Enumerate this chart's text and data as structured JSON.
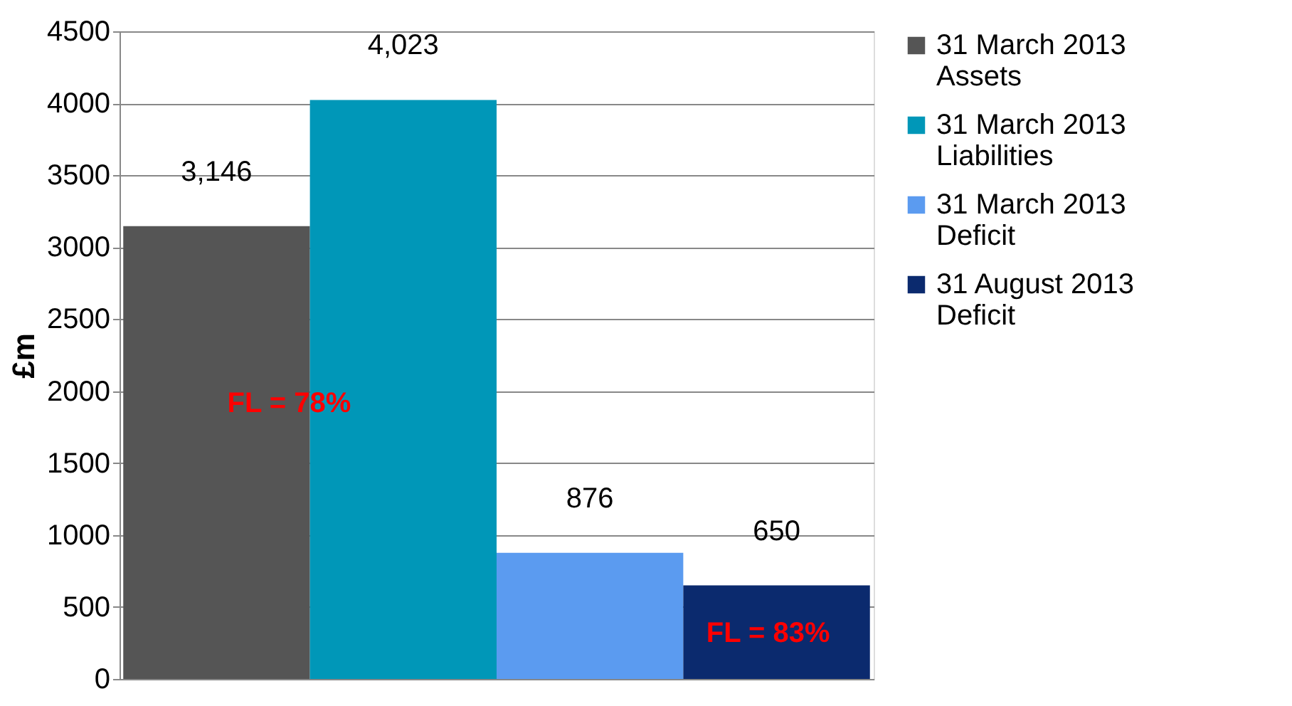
{
  "chart_data": {
    "type": "bar",
    "ylabel": "£m",
    "categories": [
      null,
      null,
      null,
      null
    ],
    "series": [
      {
        "name": "31 March 2013\nAssets",
        "color": "#555555",
        "values": [
          3146,
          null,
          null,
          null
        ]
      },
      {
        "name": "31 March 2013\nLiabilities",
        "color": "#0097b8",
        "values": [
          null,
          4023,
          null,
          null
        ]
      },
      {
        "name": "31 March 2013\nDeficit",
        "color": "#5b9bf0",
        "values": [
          null,
          null,
          876,
          null
        ]
      },
      {
        "name": "31 August 2013\nDeficit",
        "color": "#0b2a6e",
        "values": [
          null,
          null,
          null,
          650
        ]
      }
    ],
    "value_labels": [
      "3,146",
      "4,023",
      "876",
      "650"
    ],
    "annotations": [
      "FL = 78%",
      "FL = 83%"
    ],
    "ylim": [
      0,
      4500
    ],
    "yticks": [
      0,
      500,
      1000,
      1500,
      2000,
      2500,
      3000,
      3500,
      4000,
      4500
    ],
    "grid": "y",
    "legend": "right"
  }
}
